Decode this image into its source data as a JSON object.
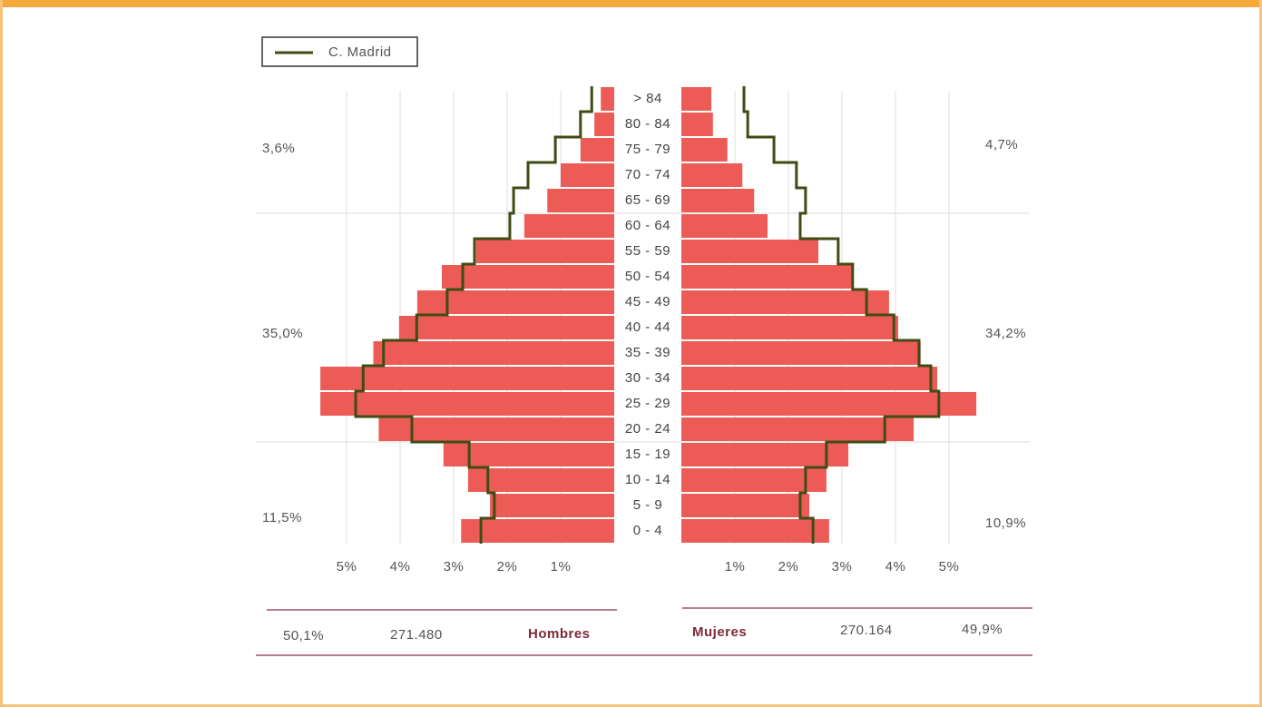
{
  "chart_data": {
    "type": "pyramid",
    "categories": [
      "> 84",
      "80 - 84",
      "75 - 79",
      "70 - 74",
      "65 - 69",
      "60 - 64",
      "55 - 59",
      "50 - 54",
      "45 - 49",
      "40 - 44",
      "35 - 39",
      "30 - 34",
      "25 - 29",
      "20 - 24",
      "15 - 19",
      "10 - 14",
      "5 - 9",
      "0 - 4"
    ],
    "series": [
      {
        "name": "Hombres",
        "color": "#ec5b55",
        "values": [
          0.25,
          0.37,
          0.63,
          1.0,
          1.25,
          1.68,
          2.58,
          3.22,
          3.68,
          4.02,
          4.5,
          5.49,
          5.49,
          4.4,
          3.19,
          2.73,
          2.32,
          2.86
        ]
      },
      {
        "name": "Mujeres",
        "color": "#ec5b55",
        "values": [
          0.56,
          0.59,
          0.86,
          1.14,
          1.36,
          1.61,
          2.56,
          3.2,
          3.88,
          4.05,
          4.47,
          4.78,
          5.51,
          4.34,
          3.12,
          2.71,
          2.39,
          2.76
        ]
      }
    ],
    "reference": {
      "name": "C. Madrid",
      "color": "#3f4c14",
      "hombres": [
        0.42,
        0.63,
        1.1,
        1.61,
        1.88,
        1.95,
        2.61,
        2.83,
        3.12,
        3.69,
        4.31,
        4.69,
        4.83,
        3.78,
        2.71,
        2.36,
        2.24,
        2.49
      ],
      "mujeres": [
        1.17,
        1.24,
        1.73,
        2.15,
        2.32,
        2.22,
        2.93,
        3.2,
        3.46,
        3.97,
        4.44,
        4.66,
        4.81,
        3.8,
        2.71,
        2.32,
        2.22,
        2.46
      ]
    },
    "xlim": [
      0,
      6.5
    ],
    "xticks": [
      {
        "value": 1,
        "label": "1%"
      },
      {
        "value": 2,
        "label": "2%"
      },
      {
        "value": 3,
        "label": "3%"
      },
      {
        "value": 4,
        "label": "4%"
      },
      {
        "value": 5,
        "label": "5%"
      }
    ],
    "grid": true,
    "annotations": [
      {
        "left": "3,6%",
        "right": "4,7%"
      },
      {
        "left": "35,0%",
        "right": "34,2%"
      },
      {
        "left": "11,5%",
        "right": "10,9%"
      }
    ],
    "footer": {
      "hombres_pct": "50,1%",
      "hombres_total": "271.480",
      "hombres_label": "Hombres",
      "mujeres_label": "Mujeres",
      "mujeres_total": "270.164",
      "mujeres_pct": "49,9%"
    }
  }
}
